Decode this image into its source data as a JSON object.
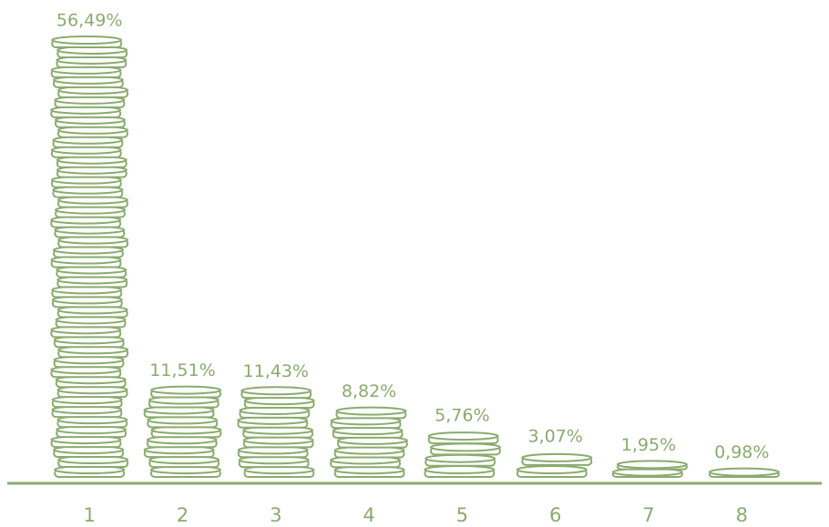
{
  "chart_data": {
    "type": "coin-bar",
    "categories": [
      "1",
      "2",
      "3",
      "4",
      "5",
      "6",
      "7",
      "8"
    ],
    "values": [
      56.49,
      11.51,
      11.43,
      8.82,
      5.76,
      3.07,
      1.95,
      0.98
    ],
    "value_labels": [
      "56,49%",
      "11,51%",
      "11,43%",
      "8,82%",
      "5,76%",
      "3,07%",
      "1,95%",
      "0,98%"
    ],
    "color": "#8aab6e"
  }
}
